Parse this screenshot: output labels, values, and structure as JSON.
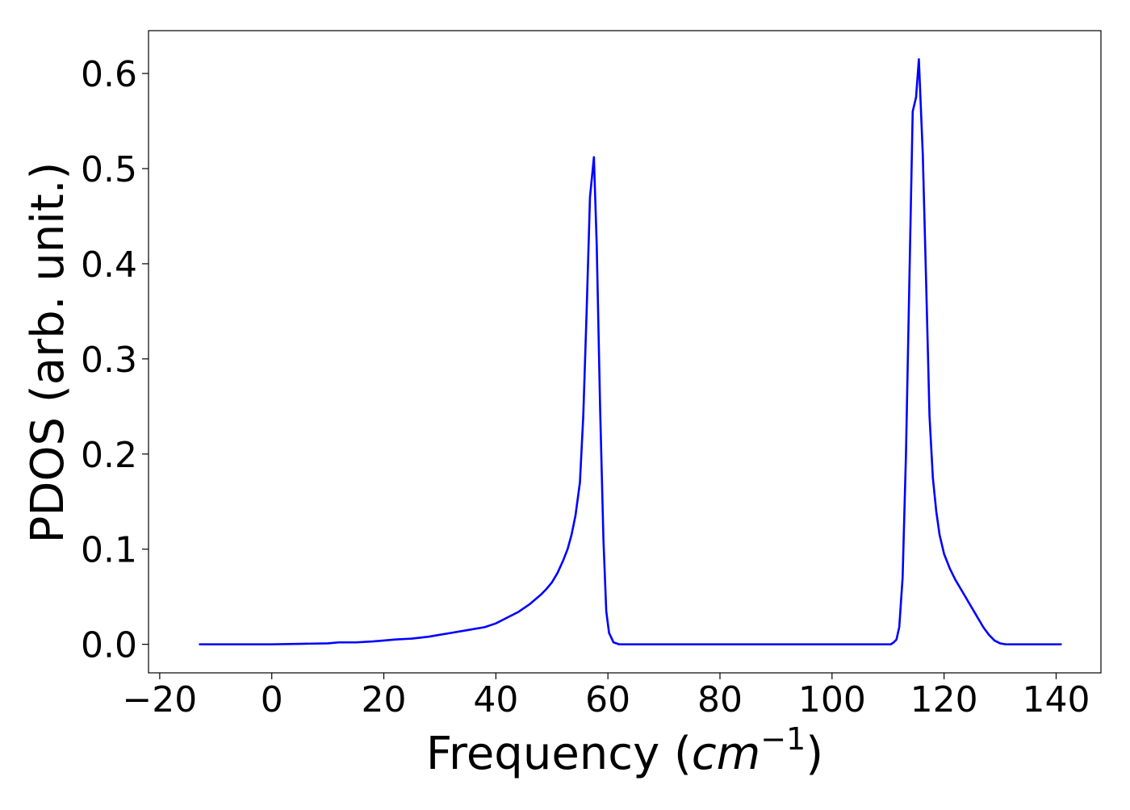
{
  "chart_data": {
    "type": "line",
    "title": "",
    "xlabel": "Frequency (cm⁻¹)",
    "xlabel_parts": {
      "text": "Frequency (",
      "unit_base": "cm",
      "unit_exp": "−1",
      "close": ")"
    },
    "ylabel": "PDOS (arb. unit.)",
    "xlim": [
      -22,
      148
    ],
    "ylim": [
      -0.03,
      0.645
    ],
    "xticks": [
      -20,
      0,
      20,
      40,
      60,
      80,
      100,
      120,
      140
    ],
    "xtick_labels": [
      "−20",
      "0",
      "20",
      "40",
      "60",
      "80",
      "100",
      "120",
      "140"
    ],
    "yticks": [
      0.0,
      0.1,
      0.2,
      0.3,
      0.4,
      0.5,
      0.6
    ],
    "ytick_labels": [
      "0.0",
      "0.1",
      "0.2",
      "0.3",
      "0.4",
      "0.5",
      "0.6"
    ],
    "grid": false,
    "legend": "none",
    "series": [
      {
        "color": "#0000ff",
        "x": [
          -13,
          -5,
          0,
          5,
          10,
          12,
          15,
          18,
          20,
          22,
          25,
          28,
          30,
          32,
          35,
          38,
          40,
          42,
          44,
          46,
          48,
          49,
          50,
          51,
          52,
          52.8,
          53.5,
          54.2,
          55,
          55.6,
          56.2,
          56.8,
          57.5,
          58,
          58.6,
          59.2,
          59.7,
          60.2,
          61,
          62,
          64,
          70,
          80,
          90,
          100,
          110,
          110.5,
          111,
          111.5,
          112,
          112.6,
          113.2,
          113.8,
          114.4,
          115,
          115.5,
          116.2,
          116.8,
          117.4,
          118,
          118.6,
          119.2,
          120,
          121,
          122,
          123,
          124,
          125,
          126,
          127,
          128,
          129,
          130,
          131,
          132,
          135,
          141
        ],
        "y": [
          0.0,
          0.0,
          0.0,
          0.0005,
          0.001,
          0.002,
          0.002,
          0.003,
          0.004,
          0.005,
          0.006,
          0.008,
          0.01,
          0.012,
          0.015,
          0.018,
          0.022,
          0.028,
          0.034,
          0.042,
          0.052,
          0.058,
          0.065,
          0.075,
          0.088,
          0.1,
          0.115,
          0.135,
          0.17,
          0.24,
          0.35,
          0.47,
          0.512,
          0.42,
          0.25,
          0.11,
          0.035,
          0.012,
          0.002,
          0.0,
          0.0,
          0.0,
          0.0,
          0.0,
          0.0,
          0.0,
          0.0,
          0.002,
          0.005,
          0.018,
          0.07,
          0.2,
          0.38,
          0.56,
          0.575,
          0.615,
          0.515,
          0.38,
          0.24,
          0.175,
          0.14,
          0.115,
          0.095,
          0.08,
          0.068,
          0.058,
          0.048,
          0.038,
          0.028,
          0.018,
          0.01,
          0.004,
          0.001,
          0.0,
          0.0,
          0.0,
          0.0
        ]
      }
    ]
  }
}
